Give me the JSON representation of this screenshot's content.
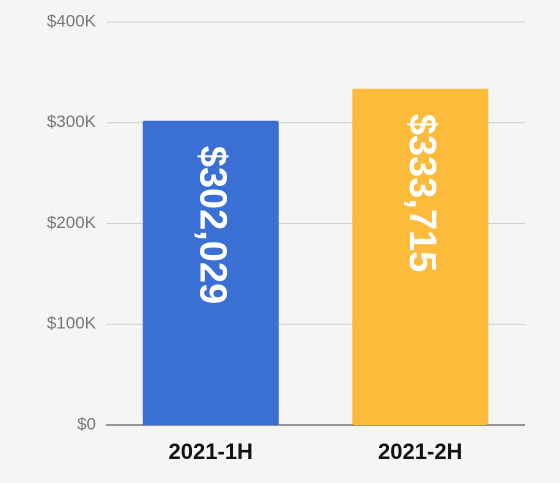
{
  "chart_data": {
    "type": "bar",
    "categories": [
      "2021-1H",
      "2021-2H"
    ],
    "values": [
      302029,
      333715
    ],
    "value_labels": [
      "$302,029",
      "$333,715"
    ],
    "colors": [
      "#3a6fd3",
      "#fdbb3c"
    ],
    "ylim": [
      0,
      400000
    ],
    "yticks": [
      {
        "value": 0,
        "label": "$0"
      },
      {
        "value": 100000,
        "label": "$100K"
      },
      {
        "value": 200000,
        "label": "$200K"
      },
      {
        "value": 300000,
        "label": "$300K"
      },
      {
        "value": 400000,
        "label": "$400K"
      }
    ],
    "grid": true
  }
}
